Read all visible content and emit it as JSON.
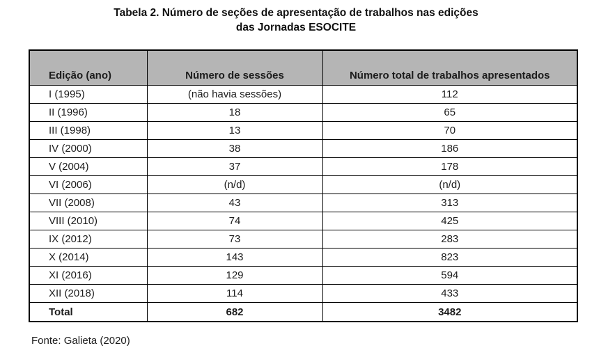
{
  "title": {
    "line1": "Tabela 2. Número de seções de apresentação de trabalhos nas edições",
    "line2": "das Jornadas ESOCITE"
  },
  "table": {
    "columns": [
      "Edição (ano)",
      "Número de sessões",
      "Número total de trabalhos apresentados"
    ],
    "rows": [
      [
        "I (1995)",
        "(não havia sessões)",
        "112"
      ],
      [
        "II (1996)",
        "18",
        "65"
      ],
      [
        "III (1998)",
        "13",
        "70"
      ],
      [
        "IV (2000)",
        "38",
        "186"
      ],
      [
        "V (2004)",
        "37",
        "178"
      ],
      [
        "VI (2006)",
        "(n/d)",
        "(n/d)"
      ],
      [
        "VII (2008)",
        "43",
        "313"
      ],
      [
        "VIII (2010)",
        "74",
        "425"
      ],
      [
        "IX (2012)",
        "73",
        "283"
      ],
      [
        "X (2014)",
        "143",
        "823"
      ],
      [
        "XI (2016)",
        "129",
        "594"
      ],
      [
        "XII (2018)",
        "114",
        "433"
      ]
    ],
    "total_row": [
      "Total",
      "682",
      "3482"
    ]
  },
  "source": "Fonte: Galieta (2020)",
  "colors": {
    "header_bg": "#b5b5b5",
    "border": "#000000",
    "text": "#1c1c1c"
  }
}
